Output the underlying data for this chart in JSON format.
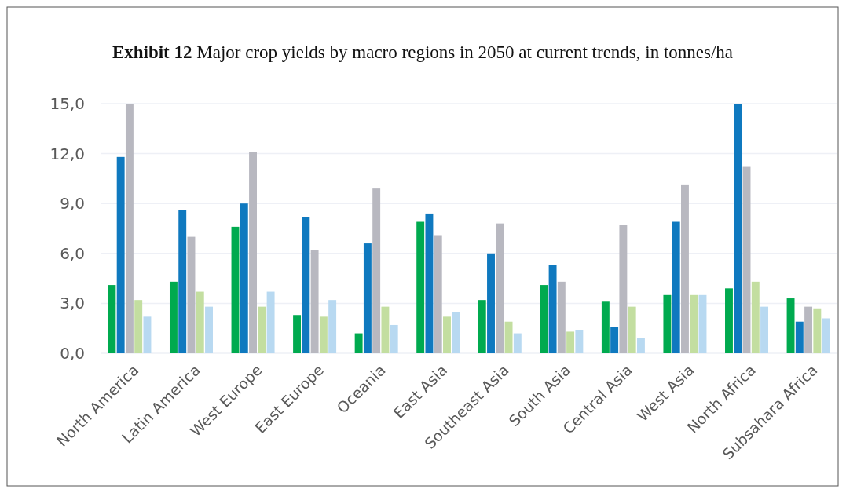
{
  "chart_data": {
    "type": "bar",
    "title": "Exhibit 12 Major crop yields by macro regions in 2050 at current trends, in tonnes/ha",
    "categories": [
      "North America",
      "Latin America",
      "West Europe",
      "East Europe",
      "Oceania",
      "East Asia",
      "Southeast Asia",
      "South Asia",
      "Central Asia",
      "West Asia",
      "North Africa",
      "Subsahara Africa"
    ],
    "series": [
      {
        "color": "#00aa4f",
        "values": [
          4.1,
          4.3,
          7.6,
          2.3,
          1.2,
          7.9,
          3.2,
          4.1,
          3.1,
          3.5,
          3.9,
          3.3
        ]
      },
      {
        "color": "#0f79bf",
        "values": [
          11.8,
          8.6,
          9.0,
          8.2,
          6.6,
          8.4,
          6.0,
          5.3,
          1.6,
          7.9,
          15.0,
          1.9
        ]
      },
      {
        "color": "#b8b8c0",
        "values": [
          15.0,
          7.0,
          12.1,
          6.2,
          9.9,
          7.1,
          7.8,
          4.3,
          7.7,
          10.1,
          11.2,
          2.8
        ]
      },
      {
        "color": "#c3dea0",
        "values": [
          3.2,
          3.7,
          2.8,
          2.2,
          2.8,
          2.2,
          1.9,
          1.3,
          2.8,
          3.5,
          4.3,
          2.7
        ]
      },
      {
        "color": "#b8d9f1",
        "values": [
          2.2,
          2.8,
          3.7,
          3.2,
          1.7,
          2.5,
          1.2,
          1.4,
          0.9,
          3.5,
          2.8,
          2.1
        ]
      }
    ],
    "ylim": [
      0,
      15
    ],
    "yticks": [
      {
        "value": 0,
        "label": "0,0"
      },
      {
        "value": 3,
        "label": "3,0"
      },
      {
        "value": 6,
        "label": "6,0"
      },
      {
        "value": 9,
        "label": "9,0"
      },
      {
        "value": 12,
        "label": "12,0"
      },
      {
        "value": 15,
        "label": "15,0"
      }
    ],
    "grid": "y"
  }
}
